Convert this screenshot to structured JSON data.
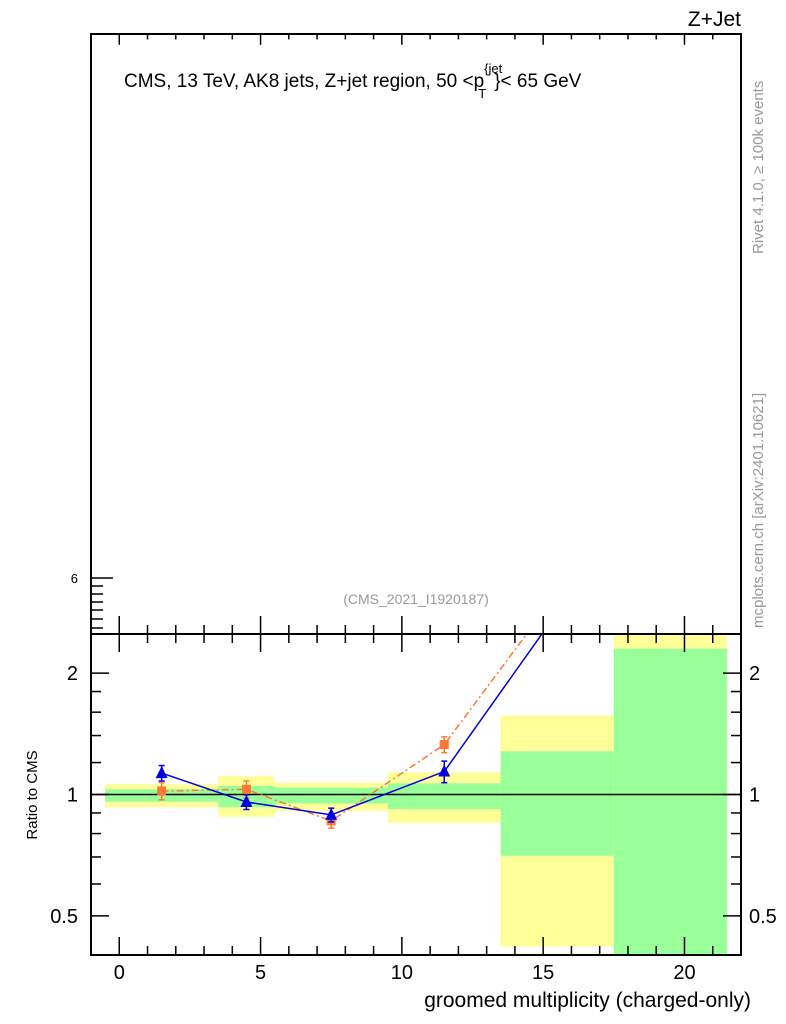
{
  "header": {
    "process_label": "Z+Jet",
    "plot_title_main": "CMS, 13 TeV, AK8 jets, Z+jet region, 50 <p",
    "plot_title_sup": "{jet",
    "plot_title_sub": "T",
    "plot_title_tail": "}< 65 GeV",
    "analysis_id": "(CMS_2021_I1920187)"
  },
  "side_labels": {
    "rivet": "Rivet 4.1.0, ≥ 100k events",
    "mcplots": "mcplots.cern.ch [arXiv:2401.10621]"
  },
  "main_panel": {
    "y_tick_label": "6"
  },
  "colors": {
    "band_outer": "#ffff99",
    "band_inner": "#99ff99",
    "series_blue": "#0000dd",
    "series_orange": "#ff7733"
  },
  "chart_data": {
    "type": "line",
    "title": "CMS, 13 TeV, AK8 jets, Z+jet region, 50 < pT jet < 65 GeV",
    "xlabel": "groomed multiplicity (charged-only)",
    "ylabel": "Ratio to CMS",
    "xlim": [
      -1,
      22
    ],
    "ylim": [
      0.4,
      2.5
    ],
    "yscale": "log",
    "x_ticks": [
      0,
      5,
      10,
      15,
      20
    ],
    "x_tick_labels": [
      "0",
      "5",
      "10",
      "15",
      "20"
    ],
    "y_ticks": [
      0.5,
      1,
      2
    ],
    "y_tick_labels": [
      "0.5",
      "1",
      "2"
    ],
    "reference_line": 1,
    "bands": {
      "bin_edges": [
        -0.5,
        3.5,
        5.5,
        9.5,
        13.5,
        17.5,
        21.5
      ],
      "outer_low": [
        0.93,
        0.88,
        0.91,
        0.85,
        0.42,
        0.3
      ],
      "outer_high": [
        1.06,
        1.11,
        1.07,
        1.135,
        1.57,
        3.0
      ],
      "inner_low": [
        0.96,
        0.93,
        0.95,
        0.92,
        0.705,
        0.3
      ],
      "inner_high": [
        1.03,
        1.05,
        1.04,
        1.066,
        1.28,
        2.3
      ]
    },
    "series": [
      {
        "name": "MC (blue, triangles)",
        "marker": "triangle",
        "x": [
          1.5,
          4.5,
          7.5,
          11.5,
          15.5
        ],
        "values": [
          1.13,
          0.958,
          0.89,
          1.14,
          2.83
        ],
        "errors": [
          0.05,
          0.04,
          0.035,
          0.07,
          0
        ]
      },
      {
        "name": "MC (orange, squares)",
        "marker": "square",
        "x": [
          1.5,
          4.5,
          7.5,
          11.5,
          15.5
        ],
        "values": [
          1.02,
          1.03,
          0.86,
          1.33,
          3.16
        ],
        "errors": [
          0.05,
          0.05,
          0.035,
          0.06,
          0
        ]
      }
    ]
  }
}
